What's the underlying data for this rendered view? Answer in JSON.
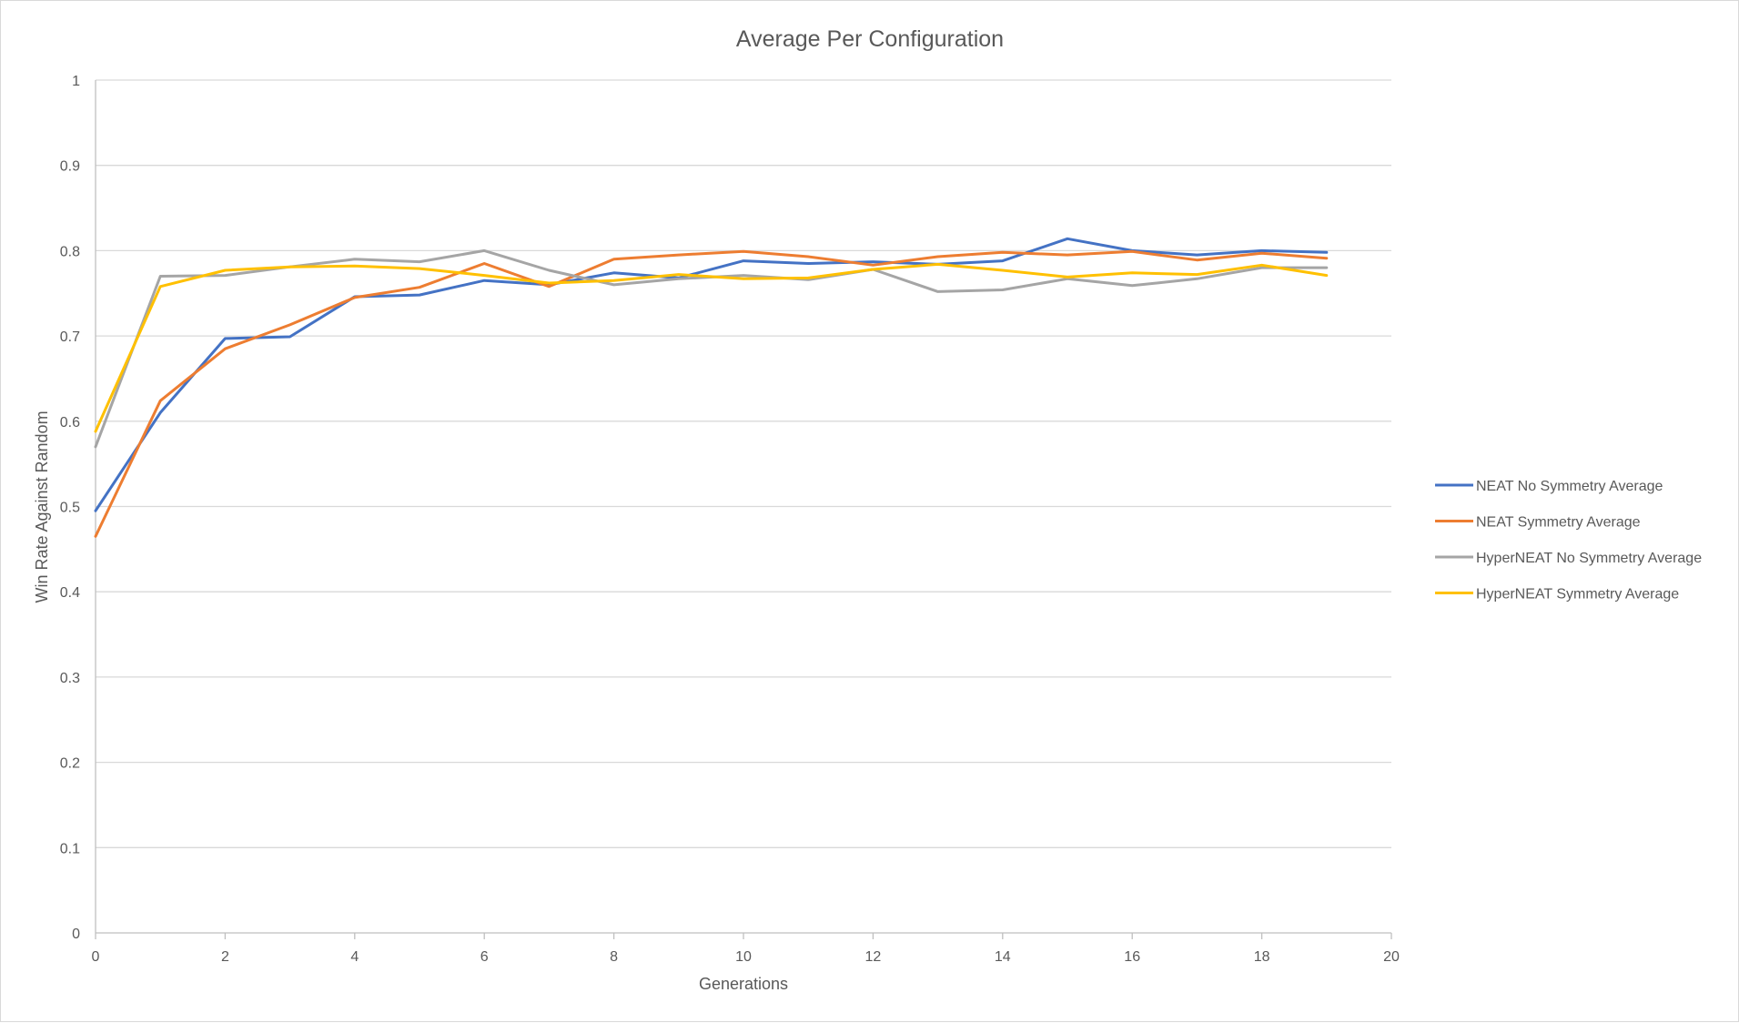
{
  "chart_data": {
    "type": "line",
    "title": "Average Per Configuration",
    "xlabel": "Generations",
    "ylabel": "Win Rate Against Random",
    "xlim": [
      0,
      20
    ],
    "ylim": [
      0,
      1
    ],
    "x_ticks": [
      0,
      2,
      4,
      6,
      8,
      10,
      12,
      14,
      16,
      18,
      20
    ],
    "y_ticks": [
      0,
      0.1,
      0.2,
      0.3,
      0.4,
      0.5,
      0.6,
      0.7,
      0.8,
      0.9,
      1
    ],
    "grid": "horizontal",
    "legend_position": "right",
    "x": [
      0,
      1,
      2,
      3,
      4,
      5,
      6,
      7,
      8,
      9,
      10,
      11,
      12,
      13,
      14,
      15,
      16,
      17,
      18,
      19
    ],
    "series": [
      {
        "name": "NEAT No Symmetry Average",
        "color": "#4472C4",
        "values": [
          0.495,
          0.61,
          0.697,
          0.699,
          0.746,
          0.748,
          0.765,
          0.76,
          0.774,
          0.768,
          0.788,
          0.785,
          0.787,
          0.784,
          0.788,
          0.814,
          0.8,
          0.795,
          0.8,
          0.798
        ]
      },
      {
        "name": "NEAT Symmetry Average",
        "color": "#ED7D31",
        "values": [
          0.465,
          0.624,
          0.685,
          0.713,
          0.745,
          0.757,
          0.785,
          0.758,
          0.79,
          0.795,
          0.799,
          0.793,
          0.783,
          0.793,
          0.798,
          0.795,
          0.799,
          0.789,
          0.797,
          0.791
        ]
      },
      {
        "name": "HyperNEAT No Symmetry Average",
        "color": "#A5A5A5",
        "values": [
          0.57,
          0.77,
          0.771,
          0.781,
          0.79,
          0.787,
          0.8,
          0.777,
          0.76,
          0.767,
          0.771,
          0.766,
          0.778,
          0.752,
          0.754,
          0.767,
          0.759,
          0.767,
          0.78,
          0.78
        ]
      },
      {
        "name": "HyperNEAT Symmetry Average",
        "color": "#FFC000",
        "values": [
          0.588,
          0.758,
          0.777,
          0.781,
          0.782,
          0.779,
          0.771,
          0.762,
          0.765,
          0.772,
          0.767,
          0.768,
          0.778,
          0.784,
          0.777,
          0.769,
          0.774,
          0.772,
          0.783,
          0.771
        ]
      }
    ]
  }
}
